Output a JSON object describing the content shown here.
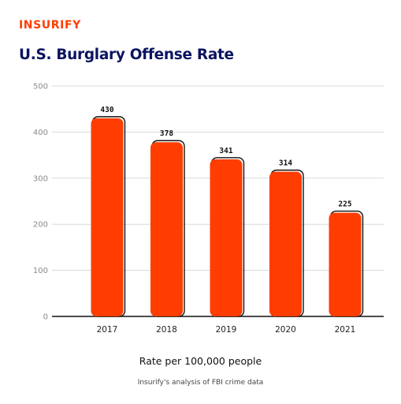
{
  "brand": {
    "logo_text": "INSURIFY",
    "color": "#FF3D00"
  },
  "colors": {
    "bar": "#FF3D00",
    "outline": "#111111",
    "title": "#0B1460",
    "grid": "#D9D9D9",
    "tick": "#8A8A8A"
  },
  "chart_data": {
    "type": "bar",
    "title": "U.S. Burglary Offense Rate",
    "xlabel": "Rate per 100,000 people",
    "ylabel": "",
    "categories": [
      "2017",
      "2018",
      "2019",
      "2020",
      "2021"
    ],
    "values": [
      430,
      378,
      341,
      314,
      225
    ],
    "data_labels": [
      "430",
      "378",
      "341",
      "314",
      "225"
    ],
    "ylim": [
      0,
      500
    ],
    "yticks": [
      0,
      100,
      200,
      300,
      400,
      500
    ],
    "grid": true,
    "legend": "none"
  },
  "footer": {
    "source": "Insurify's analysis of FBI crime data"
  }
}
